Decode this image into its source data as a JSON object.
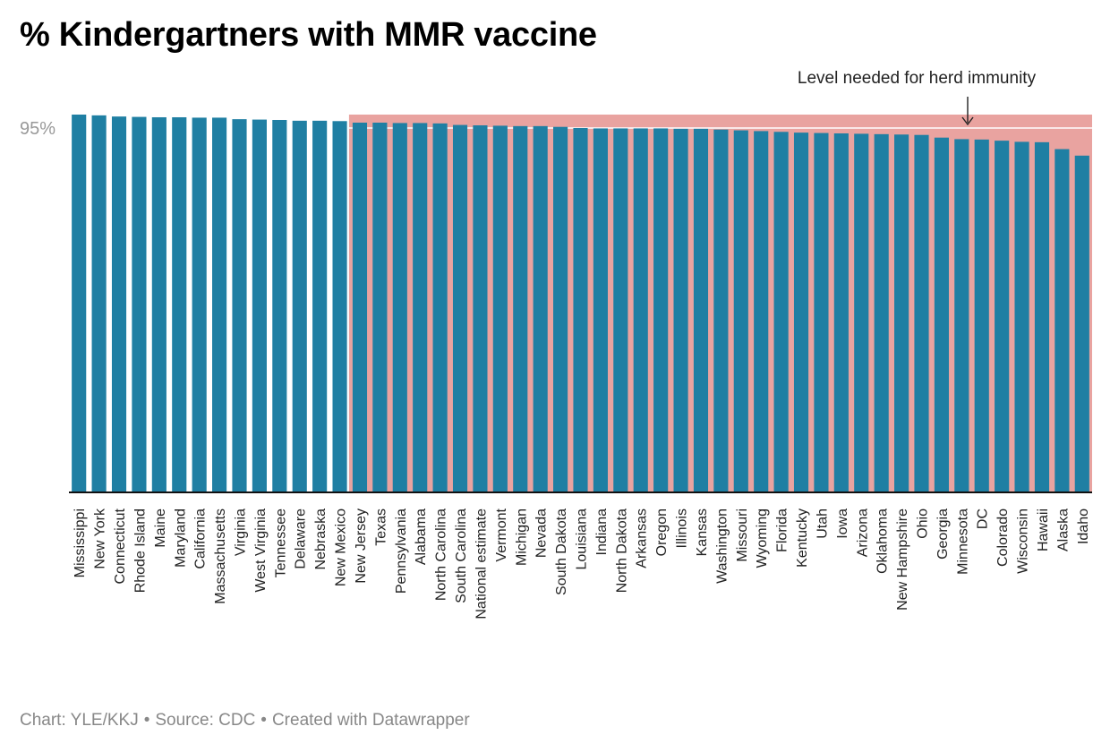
{
  "title": "% Kindergartners with MMR vaccine",
  "footer": {
    "chart_credit": "Chart: YLE/KKJ",
    "source": "Source: CDC",
    "created": "Created with Datawrapper",
    "separator": "•"
  },
  "colors": {
    "bar": "#1f7fa3",
    "shade": "#e9a3a0",
    "baseline": "#111111",
    "tick_label": "#999999"
  },
  "chart_data": {
    "type": "bar",
    "title": "% Kindergartners with MMR vaccine",
    "xlabel": "",
    "ylabel": "",
    "ylim": [
      0,
      98.5
    ],
    "yticks": [
      95
    ],
    "ytick_labels": [
      "95%"
    ],
    "grid": false,
    "annotations": [
      {
        "text": "Level needed for herd immunity",
        "range_start": "New Jersey",
        "range_end": "Idaho"
      }
    ],
    "categories": [
      "Mississippi",
      "New York",
      "Connecticut",
      "Rhode Island",
      "Maine",
      "Maryland",
      "California",
      "Massachusetts",
      "Virginia",
      "West Virginia",
      "Tennessee",
      "Delaware",
      "Nebraska",
      "New Mexico",
      "New Jersey",
      "Texas",
      "Pennsylvania",
      "Alabama",
      "North Carolina",
      "South Carolina",
      "National estimate",
      "Vermont",
      "Michigan",
      "Nevada",
      "South Dakota",
      "Louisiana",
      "Indiana",
      "North Dakota",
      "Arkansas",
      "Oregon",
      "Illinois",
      "Kansas",
      "Washington",
      "Missouri",
      "Wyoming",
      "Florida",
      "Kentucky",
      "Utah",
      "Iowa",
      "Arizona",
      "Oklahoma",
      "New Hampshire",
      "Ohio",
      "Georgia",
      "Minnesota",
      "DC",
      "Colorado",
      "Wisconsin",
      "Hawaii",
      "Alaska",
      "Idaho"
    ],
    "values": [
      98.5,
      98.3,
      98.0,
      97.9,
      97.8,
      97.8,
      97.7,
      97.7,
      97.3,
      97.2,
      97.1,
      96.9,
      96.9,
      96.8,
      96.4,
      96.4,
      96.3,
      96.3,
      96.2,
      95.8,
      95.7,
      95.6,
      95.5,
      95.5,
      95.3,
      95.0,
      94.9,
      94.9,
      94.9,
      94.9,
      94.8,
      94.8,
      94.6,
      94.4,
      94.2,
      94.0,
      93.8,
      93.7,
      93.6,
      93.5,
      93.4,
      93.3,
      93.2,
      92.5,
      92.1,
      92.0,
      91.7,
      91.4,
      91.3,
      89.5,
      87.8
    ]
  }
}
